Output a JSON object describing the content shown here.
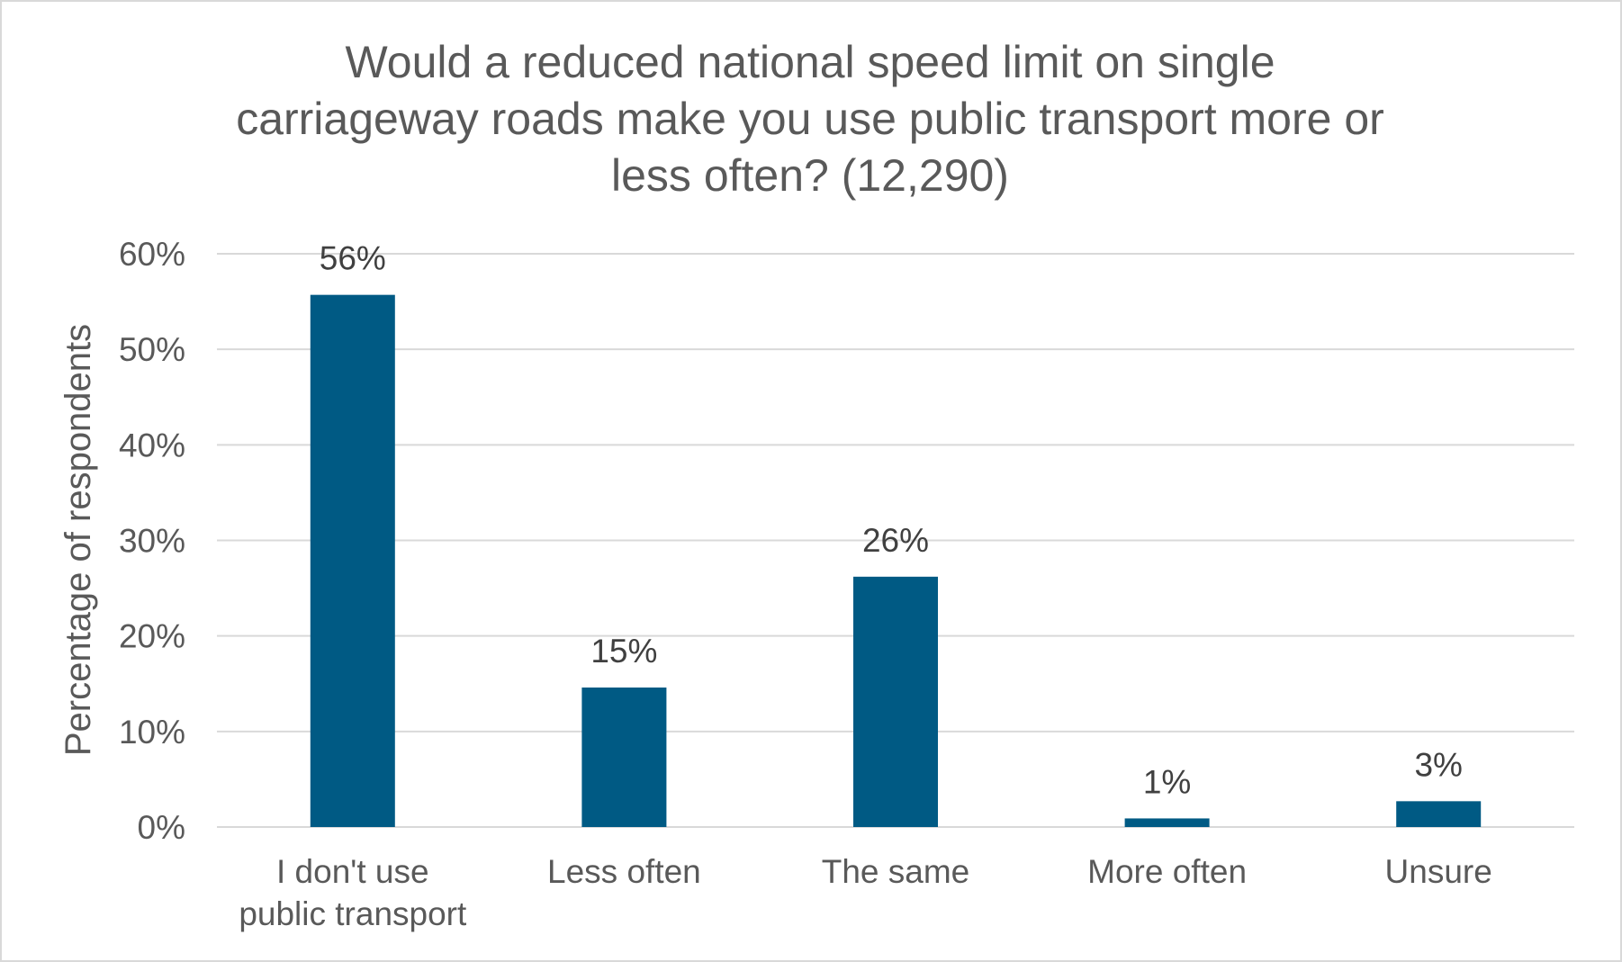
{
  "chart_data": {
    "type": "bar",
    "title": "Would a reduced national speed limit on single carriageway roads make you use public transport more or less often? (12,290)",
    "title_lines": [
      "Would a reduced national speed limit on single",
      "carriageway roads make you use public transport more or",
      "less often? (12,290)"
    ],
    "xlabel": "",
    "ylabel": "Percentage of respondents",
    "categories": [
      [
        "I don't use",
        "public transport"
      ],
      [
        "Less often"
      ],
      [
        "The same"
      ],
      [
        "More often"
      ],
      [
        "Unsure"
      ]
    ],
    "values": [
      55.7,
      14.6,
      26.2,
      0.9,
      2.7
    ],
    "data_labels": [
      "56%",
      "15%",
      "26%",
      "1%",
      "3%"
    ],
    "ylim": [
      0,
      60
    ],
    "yticks": [
      0,
      10,
      20,
      30,
      40,
      50,
      60
    ],
    "ytick_labels": [
      "0%",
      "10%",
      "20%",
      "30%",
      "40%",
      "50%",
      "60%"
    ],
    "grid": true,
    "legend": "none",
    "colors": {
      "bar": "#005A84",
      "grid": "#d9d9d9",
      "text": "#595959"
    }
  }
}
